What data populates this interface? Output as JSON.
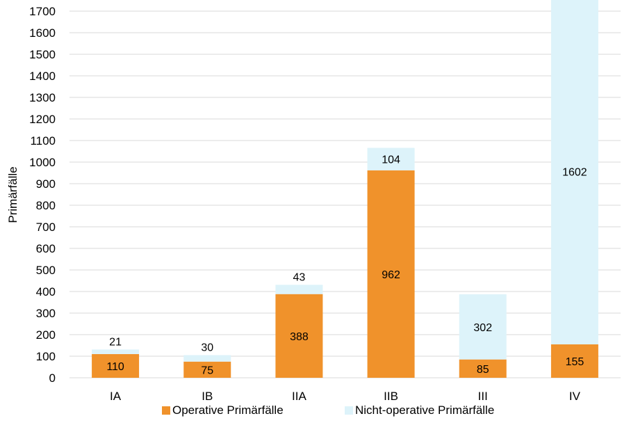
{
  "chart_data": {
    "type": "bar",
    "stacked": true,
    "categories": [
      "IA",
      "IB",
      "IIA",
      "IIB",
      "III",
      "IV"
    ],
    "series": [
      {
        "name": "Operative Primärfälle",
        "values": [
          110,
          75,
          388,
          962,
          85,
          155
        ],
        "color": "#F0922B"
      },
      {
        "name": "Nicht-operative Primärfälle",
        "values": [
          21,
          30,
          43,
          104,
          302,
          1602
        ],
        "color": "#DDF3FA"
      }
    ],
    "data_labels": [
      [
        "110",
        "75",
        "388",
        "962",
        "85",
        "155"
      ],
      [
        "21",
        "30",
        "43",
        "104",
        "302",
        "1602"
      ]
    ],
    "ylabel": "Primärfälle",
    "xlabel": "",
    "title": "",
    "ylim": [
      0,
      1700
    ],
    "yticks": [
      0,
      100,
      200,
      300,
      400,
      500,
      600,
      700,
      800,
      900,
      1000,
      1100,
      1200,
      1300,
      1400,
      1500,
      1600,
      1700
    ],
    "grid": true,
    "gridline_color": "#D9D9D9",
    "legend_position": "bottom"
  }
}
